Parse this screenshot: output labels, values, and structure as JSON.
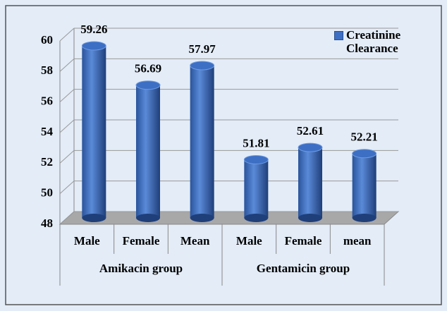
{
  "chart_data": {
    "type": "bar",
    "categories": [
      "Male",
      "Female",
      "Mean",
      "Male",
      "Female",
      "mean"
    ],
    "groups": [
      "Amikacin group",
      "Gentamicin group"
    ],
    "series": [
      {
        "name": "Creatinine Clearance",
        "color": "#3d6fc4",
        "values": [
          59.26,
          56.69,
          57.97,
          51.81,
          52.61,
          52.21
        ]
      }
    ],
    "ylim": [
      48,
      60
    ],
    "yticks": [
      48,
      50,
      52,
      54,
      56,
      58,
      60
    ],
    "grid": true,
    "legend": "top-right"
  }
}
